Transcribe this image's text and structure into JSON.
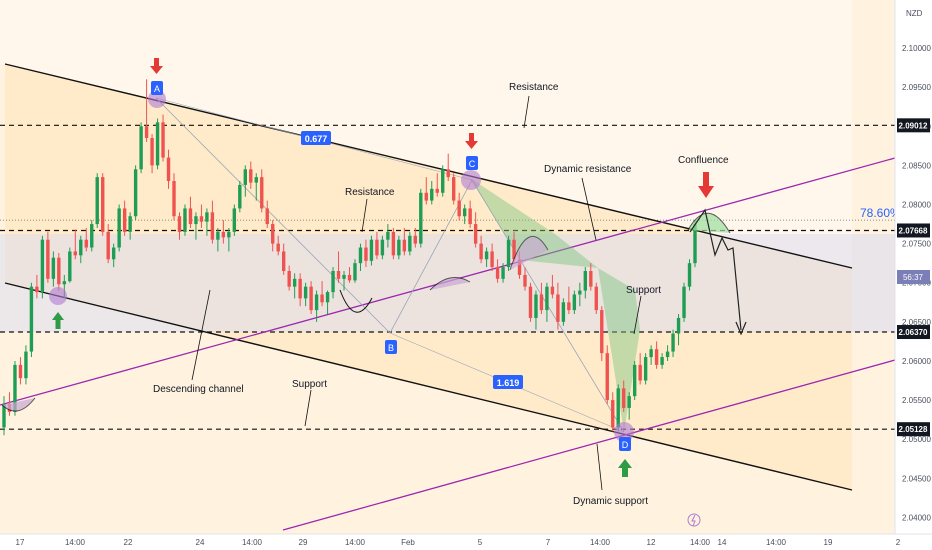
{
  "chart_data": {
    "type": "candlestick",
    "currency": "NZD",
    "ylim": [
      2.0375,
      2.1055
    ],
    "x_tick_labels": [
      "17",
      "14:00",
      "22",
      "14:00",
      "24",
      "14:00",
      "29",
      "14:00",
      "Feb",
      "5",
      "14:00",
      "7",
      "14:00",
      "12",
      "14:00",
      "14",
      "14:00",
      "19",
      "2"
    ],
    "y_tick_labels": [
      "2.04000",
      "2.04500",
      "2.05000",
      "2.05500",
      "2.06000",
      "2.06500",
      "2.07000",
      "2.07500",
      "2.08000",
      "2.08500",
      "2.09000",
      "2.09500",
      "2.10000"
    ],
    "levels": [
      {
        "value": 2.09012,
        "label": "2.09012"
      },
      {
        "value": 2.07668,
        "label": "2.07668"
      },
      {
        "value": 2.0637,
        "label": "2.06370"
      },
      {
        "value": 2.05128,
        "label": "2.05128"
      }
    ],
    "countdown": "56:37",
    "fib_labels": [
      "0.677",
      "1.619",
      "78.60%"
    ],
    "pattern_points": [
      "A",
      "B",
      "C",
      "D"
    ],
    "annotations": [
      "Resistance",
      "Resistance",
      "Dynamic resistance",
      "Confluence",
      "Support",
      "Support",
      "Descending channel",
      "Dynamic support"
    ],
    "candles": [
      [
        2.0515,
        2.0555,
        2.0505,
        2.0545
      ],
      [
        2.0545,
        2.056,
        2.053,
        2.0535
      ],
      [
        2.0535,
        2.06,
        2.053,
        2.0595
      ],
      [
        2.0595,
        2.0605,
        2.057,
        2.0578
      ],
      [
        2.0578,
        2.062,
        2.057,
        2.0612
      ],
      [
        2.0612,
        2.07,
        2.0605,
        2.0695
      ],
      [
        2.0695,
        2.071,
        2.068,
        2.0688
      ],
      [
        2.0688,
        2.076,
        2.068,
        2.0755
      ],
      [
        2.0755,
        2.0765,
        2.07,
        2.0705
      ],
      [
        2.0705,
        2.074,
        2.0695,
        2.0732
      ],
      [
        2.0732,
        2.0738,
        2.069,
        2.0698
      ],
      [
        2.0698,
        2.071,
        2.068,
        2.0702
      ],
      [
        2.0702,
        2.0745,
        2.07,
        2.074
      ],
      [
        2.074,
        2.0768,
        2.073,
        2.0735
      ],
      [
        2.0735,
        2.076,
        2.0725,
        2.0755
      ],
      [
        2.0755,
        2.077,
        2.074,
        2.0745
      ],
      [
        2.0745,
        2.078,
        2.074,
        2.0775
      ],
      [
        2.0775,
        2.084,
        2.077,
        2.0835
      ],
      [
        2.0835,
        2.084,
        2.076,
        2.0765
      ],
      [
        2.0765,
        2.0775,
        2.0725,
        2.073
      ],
      [
        2.073,
        2.075,
        2.072,
        2.0745
      ],
      [
        2.0745,
        2.08,
        2.074,
        2.0795
      ],
      [
        2.0795,
        2.0805,
        2.076,
        2.0765
      ],
      [
        2.0765,
        2.079,
        2.0755,
        2.0785
      ],
      [
        2.0785,
        2.085,
        2.078,
        2.0845
      ],
      [
        2.0845,
        2.0905,
        2.084,
        2.09
      ],
      [
        2.09,
        2.096,
        2.088,
        2.0885
      ],
      [
        2.0885,
        2.089,
        2.084,
        2.085
      ],
      [
        2.085,
        2.091,
        2.0845,
        2.0905
      ],
      [
        2.0905,
        2.0915,
        2.0855,
        2.086
      ],
      [
        2.086,
        2.087,
        2.082,
        2.083
      ],
      [
        2.083,
        2.084,
        2.078,
        2.0785
      ],
      [
        2.0785,
        2.079,
        2.0755,
        2.0765
      ],
      [
        2.0765,
        2.08,
        2.076,
        2.0795
      ],
      [
        2.0795,
        2.081,
        2.077,
        2.0775
      ],
      [
        2.0775,
        2.079,
        2.0755,
        2.0785
      ],
      [
        2.0785,
        2.08,
        2.077,
        2.0778
      ],
      [
        2.0778,
        2.0795,
        2.076,
        2.079
      ],
      [
        2.079,
        2.0805,
        2.075,
        2.0755
      ],
      [
        2.0755,
        2.077,
        2.074,
        2.0765
      ],
      [
        2.0765,
        2.078,
        2.075,
        2.0758
      ],
      [
        2.0758,
        2.077,
        2.074,
        2.0765
      ],
      [
        2.0765,
        2.08,
        2.076,
        2.0795
      ],
      [
        2.0795,
        2.083,
        2.079,
        2.0825
      ],
      [
        2.0825,
        2.085,
        2.081,
        2.0845
      ],
      [
        2.0845,
        2.0855,
        2.082,
        2.0828
      ],
      [
        2.0828,
        2.084,
        2.0805,
        2.0835
      ],
      [
        2.0835,
        2.0845,
        2.079,
        2.0795
      ],
      [
        2.0795,
        2.0805,
        2.077,
        2.0775
      ],
      [
        2.0775,
        2.078,
        2.074,
        2.075
      ],
      [
        2.075,
        2.076,
        2.0735,
        2.074
      ],
      [
        2.074,
        2.075,
        2.071,
        2.0715
      ],
      [
        2.0715,
        2.0722,
        2.069,
        2.0695
      ],
      [
        2.0695,
        2.0712,
        2.068,
        2.0705
      ],
      [
        2.0705,
        2.0712,
        2.067,
        2.068
      ],
      [
        2.068,
        2.07,
        2.067,
        2.0695
      ],
      [
        2.0695,
        2.0702,
        2.066,
        2.0665
      ],
      [
        2.0665,
        2.069,
        2.065,
        2.0685
      ],
      [
        2.0685,
        2.0702,
        2.067,
        2.0675
      ],
      [
        2.0675,
        2.069,
        2.066,
        2.0688
      ],
      [
        2.0688,
        2.072,
        2.068,
        2.0715
      ],
      [
        2.0715,
        2.074,
        2.07,
        2.0705
      ],
      [
        2.0705,
        2.0715,
        2.069,
        2.071
      ],
      [
        2.071,
        2.072,
        2.07,
        2.0703
      ],
      [
        2.0703,
        2.073,
        2.07,
        2.0725
      ],
      [
        2.0725,
        2.075,
        2.0715,
        2.0745
      ],
      [
        2.0745,
        2.0755,
        2.072,
        2.0728
      ],
      [
        2.0728,
        2.076,
        2.0722,
        2.0755
      ],
      [
        2.0755,
        2.0765,
        2.073,
        2.0735
      ],
      [
        2.0735,
        2.076,
        2.073,
        2.0755
      ],
      [
        2.0755,
        2.0775,
        2.0745,
        2.0765
      ],
      [
        2.0765,
        2.077,
        2.073,
        2.0735
      ],
      [
        2.0735,
        2.076,
        2.073,
        2.0755
      ],
      [
        2.0755,
        2.077,
        2.0735,
        2.074
      ],
      [
        2.074,
        2.0765,
        2.0735,
        2.076
      ],
      [
        2.076,
        2.077,
        2.0745,
        2.075
      ],
      [
        2.075,
        2.082,
        2.0745,
        2.0815
      ],
      [
        2.0815,
        2.0835,
        2.08,
        2.0805
      ],
      [
        2.0805,
        2.083,
        2.08,
        2.082
      ],
      [
        2.082,
        2.084,
        2.081,
        2.0815
      ],
      [
        2.0815,
        2.085,
        2.081,
        2.0845
      ],
      [
        2.0845,
        2.0865,
        2.083,
        2.0835
      ],
      [
        2.0835,
        2.084,
        2.08,
        2.0805
      ],
      [
        2.0805,
        2.0815,
        2.078,
        2.0785
      ],
      [
        2.0785,
        2.08,
        2.0775,
        2.0795
      ],
      [
        2.0795,
        2.0805,
        2.077,
        2.0775
      ],
      [
        2.0775,
        2.079,
        2.0745,
        2.075
      ],
      [
        2.075,
        2.076,
        2.0725,
        2.073
      ],
      [
        2.073,
        2.0745,
        2.072,
        2.074
      ],
      [
        2.074,
        2.075,
        2.0715,
        2.072
      ],
      [
        2.072,
        2.073,
        2.07,
        2.0705
      ],
      [
        2.0705,
        2.0725,
        2.07,
        2.072
      ],
      [
        2.072,
        2.076,
        2.0715,
        2.0755
      ],
      [
        2.0755,
        2.0765,
        2.0725,
        2.073
      ],
      [
        2.073,
        2.074,
        2.0705,
        2.071
      ],
      [
        2.071,
        2.072,
        2.069,
        2.0695
      ],
      [
        2.0695,
        2.07,
        2.065,
        2.0655
      ],
      [
        2.0655,
        2.069,
        2.064,
        2.0685
      ],
      [
        2.0685,
        2.07,
        2.066,
        2.0665
      ],
      [
        2.0665,
        2.07,
        2.065,
        2.0695
      ],
      [
        2.0695,
        2.071,
        2.068,
        2.0685
      ],
      [
        2.0685,
        2.07,
        2.064,
        2.065
      ],
      [
        2.065,
        2.068,
        2.0645,
        2.0675
      ],
      [
        2.0675,
        2.0695,
        2.066,
        2.0665
      ],
      [
        2.0665,
        2.069,
        2.066,
        2.0685
      ],
      [
        2.0685,
        2.07,
        2.067,
        2.069
      ],
      [
        2.069,
        2.072,
        2.068,
        2.0715
      ],
      [
        2.0715,
        2.0725,
        2.069,
        2.0695
      ],
      [
        2.0695,
        2.07,
        2.066,
        2.0665
      ],
      [
        2.0665,
        2.067,
        2.06,
        2.061
      ],
      [
        2.061,
        2.062,
        2.0545,
        2.055
      ],
      [
        2.055,
        2.056,
        2.051,
        2.0515
      ],
      [
        2.0515,
        2.057,
        2.051,
        2.0565
      ],
      [
        2.0565,
        2.0575,
        2.0535,
        2.054
      ],
      [
        2.054,
        2.056,
        2.0525,
        2.0555
      ],
      [
        2.0555,
        2.06,
        2.055,
        2.0595
      ],
      [
        2.0595,
        2.061,
        2.057,
        2.0575
      ],
      [
        2.0575,
        2.061,
        2.057,
        2.0605
      ],
      [
        2.0605,
        2.062,
        2.0595,
        2.0615
      ],
      [
        2.0615,
        2.0625,
        2.059,
        2.0595
      ],
      [
        2.0595,
        2.061,
        2.059,
        2.0605
      ],
      [
        2.0605,
        2.062,
        2.06,
        2.0612
      ],
      [
        2.0612,
        2.064,
        2.0605,
        2.0635
      ],
      [
        2.0635,
        2.066,
        2.062,
        2.0655
      ],
      [
        2.0655,
        2.07,
        2.065,
        2.0695
      ],
      [
        2.0695,
        2.073,
        2.069,
        2.0725
      ],
      [
        2.0725,
        2.078,
        2.072,
        2.0775
      ]
    ]
  }
}
